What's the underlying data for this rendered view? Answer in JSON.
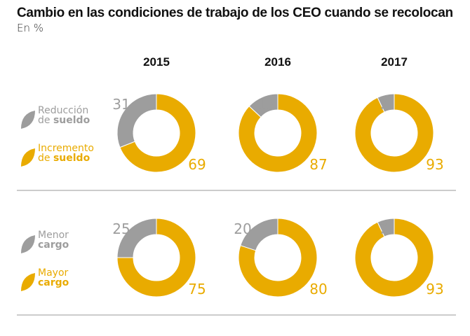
{
  "title": "Cambio en las condiciones de trabajo de los CEO cuando se recolocan",
  "subtitle": "En %",
  "colors": {
    "negative": "#9d9d9d",
    "positive": "#e9ab00",
    "divider": "#9a9a9a"
  },
  "chart_data": [
    {
      "type": "pie",
      "categories": [
        "2015",
        "2016",
        "2017"
      ],
      "legend": [
        {
          "line1": "Reducción",
          "line2a": "de ",
          "line2b": "sueldo"
        },
        {
          "line1": "Incremento",
          "line2a": "de ",
          "line2b": "sueldo"
        }
      ],
      "series": [
        {
          "name": "Reducción de sueldo",
          "values": [
            31,
            13,
            7
          ]
        },
        {
          "name": "Incremento de sueldo",
          "values": [
            69,
            87,
            93
          ]
        }
      ]
    },
    {
      "type": "pie",
      "categories": [
        "2015",
        "2016",
        "2017"
      ],
      "legend": [
        {
          "line1": "Menor",
          "line2a": "",
          "line2b": "cargo"
        },
        {
          "line1": "Mayor",
          "line2a": "",
          "line2b": "cargo"
        }
      ],
      "series": [
        {
          "name": "Menor cargo",
          "values": [
            25,
            20,
            7
          ]
        },
        {
          "name": "Mayor cargo",
          "values": [
            75,
            80,
            93
          ]
        }
      ]
    }
  ]
}
